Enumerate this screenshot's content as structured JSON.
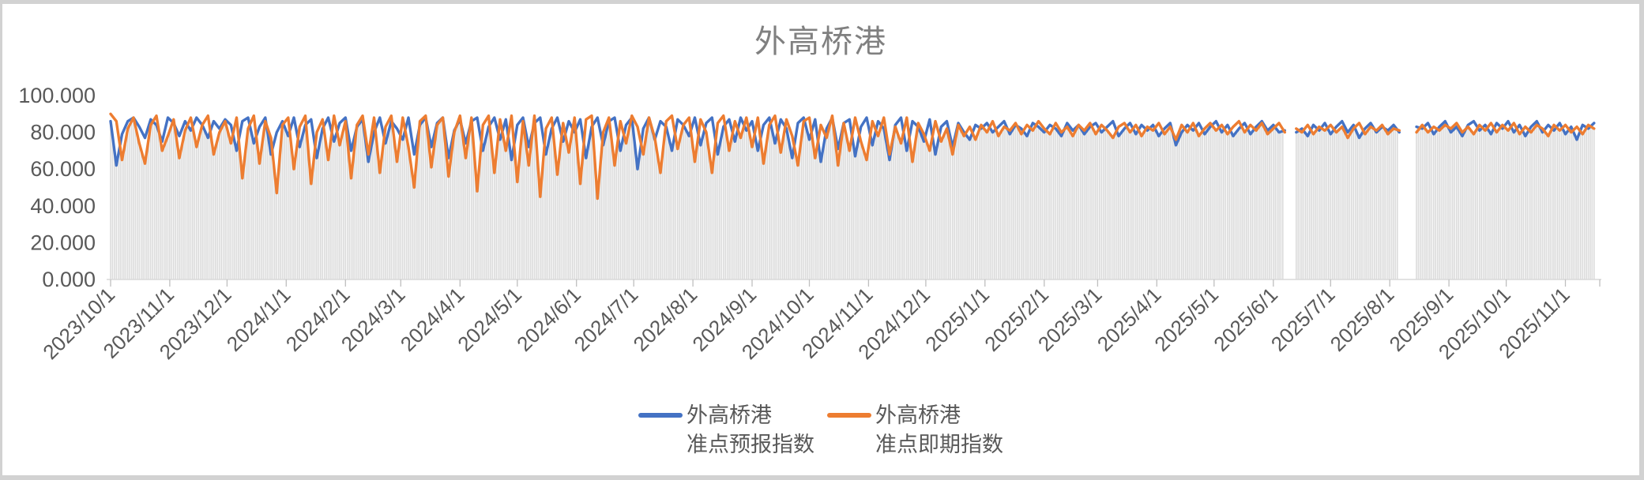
{
  "chart_data": {
    "type": "line",
    "title": "外高桥港",
    "legend_position": "bottom",
    "grid": "off",
    "bar_color": "#dbdbdb",
    "axis_color": "#d9d9d9",
    "tick_color": "#bfbfbf",
    "label_color": "#595959",
    "title_color": "#808080",
    "day_step": 3,
    "day_max": 780,
    "y_axis": {
      "min": 0,
      "max": 100,
      "tick_values": [
        0,
        20,
        40,
        60,
        80,
        100
      ],
      "tick_labels": [
        "0.000",
        "20.000",
        "40.000",
        "60.000",
        "80.000",
        "100.000"
      ]
    },
    "x_axis": {
      "tick_labels": [
        "2023/10/1",
        "2023/11/1",
        "2023/12/1",
        "2024/1/1",
        "2024/2/1",
        "2024/3/1",
        "2024/4/1",
        "2024/5/1",
        "2024/6/1",
        "2024/7/1",
        "2024/8/1",
        "2024/9/1",
        "2024/10/1",
        "2024/11/1",
        "2024/12/1",
        "2025/1/1",
        "2025/2/1",
        "2025/3/1",
        "2025/4/1",
        "2025/5/1",
        "2025/6/1",
        "2025/7/1",
        "2025/8/1",
        "2025/9/1",
        "2025/10/1",
        "2025/11/1"
      ],
      "tick_days": [
        0,
        31,
        61,
        92,
        123,
        152,
        183,
        213,
        244,
        274,
        305,
        336,
        366,
        397,
        427,
        458,
        489,
        517,
        548,
        578,
        609,
        639,
        670,
        701,
        731,
        762
      ]
    },
    "series": [
      {
        "name": "外高桥港 准点预报指数",
        "legend_line1": "外高桥港",
        "legend_line2": "准点预报指数",
        "color": "#4472C4",
        "values": [
          86,
          62,
          79,
          86,
          88,
          83,
          77,
          87,
          84,
          75,
          88,
          85,
          78,
          86,
          81,
          88,
          84,
          77,
          86,
          82,
          87,
          84,
          70,
          86,
          88,
          74,
          83,
          88,
          68,
          80,
          86,
          78,
          88,
          72,
          84,
          87,
          66,
          82,
          88,
          75,
          85,
          88,
          70,
          83,
          87,
          64,
          80,
          88,
          74,
          86,
          82,
          76,
          88,
          68,
          84,
          88,
          72,
          85,
          88,
          66,
          81,
          87,
          74,
          86,
          88,
          70,
          83,
          88,
          76,
          87,
          65,
          84,
          88,
          72,
          85,
          88,
          68,
          82,
          88,
          75,
          86,
          80,
          87,
          66,
          83,
          88,
          73,
          86,
          88,
          70,
          84,
          88,
          60,
          82,
          88,
          76,
          86,
          83,
          70,
          87,
          84,
          78,
          88,
          73,
          85,
          88,
          68,
          83,
          87,
          75,
          88,
          81,
          86,
          70,
          84,
          88,
          74,
          87,
          82,
          66,
          85,
          88,
          76,
          87,
          64,
          82,
          88,
          71,
          85,
          87,
          67,
          83,
          88,
          73,
          86,
          82,
          65,
          84,
          88,
          70,
          86,
          83,
          75,
          87,
          68,
          83,
          86,
          72,
          85,
          80,
          76,
          84,
          82,
          85,
          80,
          83,
          86,
          79,
          84,
          82,
          78,
          85,
          83,
          80,
          84,
          82,
          78,
          85,
          81,
          84,
          79,
          83,
          85,
          80,
          83,
          86,
          78,
          82,
          85,
          79,
          84,
          81,
          84,
          78,
          82,
          85,
          73,
          80,
          84,
          81,
          85,
          79,
          83,
          86,
          80,
          84,
          78,
          82,
          85,
          79,
          83,
          86,
          81,
          84,
          80,
          81,
          null,
          80,
          82,
          78,
          84,
          81,
          85,
          79,
          83,
          86,
          80,
          84,
          77,
          82,
          85,
          80,
          83,
          81,
          84,
          80,
          null,
          null,
          83,
          82,
          85,
          79,
          83,
          86,
          80,
          83,
          78,
          84,
          86,
          81,
          84,
          79,
          85,
          82,
          86,
          80,
          84,
          78,
          83,
          86,
          80,
          84,
          81,
          85,
          79,
          83,
          76,
          84,
          82,
          85
        ]
      },
      {
        "name": "外高桥港 准点即期指数",
        "legend_line1": "外高桥港",
        "legend_line2": "准点即期指数",
        "color": "#ED7D31",
        "values": [
          90,
          86,
          65,
          82,
          88,
          74,
          63,
          84,
          89,
          70,
          78,
          87,
          66,
          81,
          88,
          72,
          84,
          89,
          68,
          80,
          86,
          74,
          88,
          55,
          82,
          89,
          63,
          86,
          77,
          47,
          84,
          88,
          60,
          83,
          89,
          52,
          80,
          87,
          65,
          89,
          73,
          86,
          55,
          84,
          89,
          68,
          88,
          58,
          83,
          89,
          64,
          88,
          72,
          50,
          86,
          89,
          61,
          84,
          88,
          56,
          80,
          89,
          66,
          88,
          48,
          84,
          89,
          58,
          87,
          70,
          89,
          53,
          86,
          62,
          89,
          45,
          82,
          88,
          57,
          85,
          69,
          88,
          52,
          87,
          89,
          44,
          80,
          88,
          62,
          86,
          74,
          89,
          83,
          68,
          88,
          77,
          58,
          86,
          89,
          71,
          84,
          88,
          64,
          87,
          80,
          58,
          85,
          89,
          70,
          86,
          77,
          88,
          72,
          88,
          63,
          84,
          89,
          69,
          87,
          78,
          62,
          86,
          88,
          66,
          84,
          77,
          89,
          62,
          85,
          70,
          88,
          75,
          65,
          86,
          78,
          88,
          68,
          83,
          74,
          88,
          64,
          85,
          79,
          70,
          86,
          75,
          82,
          68,
          84,
          78,
          83,
          76,
          84,
          80,
          86,
          78,
          83,
          81,
          85,
          79,
          84,
          81,
          86,
          82,
          79,
          85,
          80,
          83,
          78,
          84,
          81,
          85,
          79,
          84,
          81,
          77,
          83,
          85,
          80,
          84,
          78,
          83,
          81,
          85,
          79,
          83,
          76,
          84,
          80,
          85,
          78,
          82,
          85,
          81,
          84,
          79,
          83,
          86,
          80,
          84,
          81,
          85,
          79,
          82,
          85,
          80,
          null,
          82,
          80,
          84,
          79,
          83,
          81,
          84,
          80,
          83,
          77,
          82,
          85,
          79,
          83,
          81,
          84,
          79,
          82,
          81,
          null,
          null,
          80,
          84,
          80,
          83,
          81,
          84,
          82,
          85,
          80,
          83,
          79,
          84,
          81,
          85,
          80,
          84,
          81,
          85,
          79,
          83,
          80,
          84,
          82,
          78,
          84,
          81,
          84,
          80,
          83,
          79,
          84,
          82
        ]
      }
    ]
  }
}
